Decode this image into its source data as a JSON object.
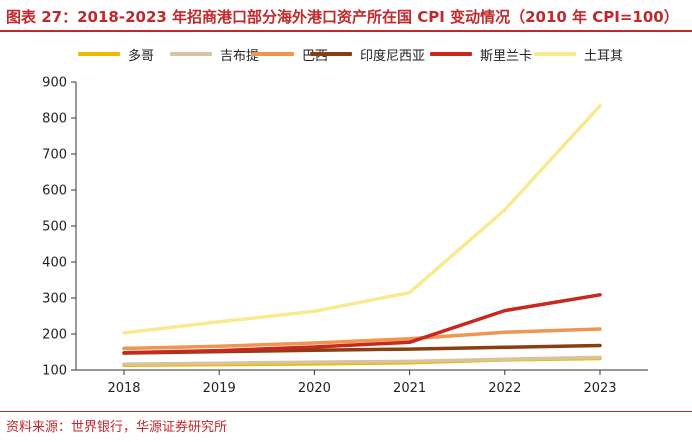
{
  "title": "图表 27：2018-2023 年招商港口部分海外港口资产所在国 CPI 变动情况（2010 年 CPI=100）",
  "source": "资料来源：世界银行，华源证券研究所",
  "chart_data": {
    "type": "line",
    "x": [
      "2018",
      "2019",
      "2020",
      "2021",
      "2022",
      "2023"
    ],
    "ylim": [
      100,
      900
    ],
    "yticks": [
      100,
      200,
      300,
      400,
      500,
      600,
      700,
      800,
      900
    ],
    "grid": false,
    "legend_position": "top",
    "series": [
      {
        "name": "多哥",
        "color": "#f2b800",
        "values": [
          113,
          115,
          117,
          120,
          128,
          132
        ]
      },
      {
        "name": "吉布提",
        "color": "#d8c3a0",
        "values": [
          116,
          119,
          122,
          124,
          130,
          135
        ]
      },
      {
        "name": "巴西",
        "color": "#f0954f",
        "values": [
          160,
          166,
          175,
          187,
          205,
          214
        ]
      },
      {
        "name": "印度尼西亚",
        "color": "#8b3e12",
        "values": [
          147,
          151,
          155,
          158,
          163,
          168
        ]
      },
      {
        "name": "斯里兰卡",
        "color": "#c8281e",
        "values": [
          148,
          154,
          164,
          177,
          265,
          309
        ]
      },
      {
        "name": "土耳其",
        "color": "#f7ea8f",
        "values": [
          203,
          234,
          263,
          315,
          545,
          834
        ]
      }
    ]
  }
}
